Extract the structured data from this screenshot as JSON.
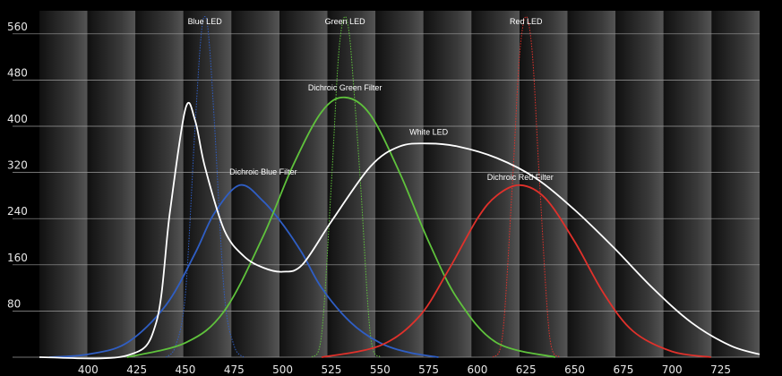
{
  "chart_data": {
    "type": "line",
    "xlabel": "",
    "ylabel": "",
    "xlim": [
      375,
      745
    ],
    "ylim": [
      0,
      600
    ],
    "grid": true,
    "x_ticks": [
      400,
      425,
      450,
      475,
      500,
      525,
      550,
      575,
      600,
      625,
      650,
      675,
      700,
      725
    ],
    "y_ticks": [
      80,
      160,
      240,
      320,
      400,
      480,
      560
    ],
    "colors": {
      "background": "#000000",
      "gridline": "#9a9a9a",
      "blue": "#2f5ec4",
      "green": "#5fc23c",
      "red": "#e0312b",
      "white": "#ffffff"
    },
    "series": [
      {
        "name": "Blue LED",
        "color": "#2f5ec4",
        "style": "dotted",
        "peak_x": 460,
        "peak_y": 590,
        "x": [
          440,
          445,
          450,
          455,
          458,
          460,
          462,
          465,
          470,
          475,
          480
        ],
        "y": [
          0,
          20,
          110,
          400,
          555,
          590,
          555,
          400,
          110,
          20,
          0
        ]
      },
      {
        "name": "Green LED",
        "color": "#5fc23c",
        "style": "dotted",
        "peak_x": 532,
        "peak_y": 590,
        "x": [
          515,
          520,
          525,
          528,
          530,
          532,
          534,
          536,
          540,
          545,
          550
        ],
        "y": [
          0,
          40,
          300,
          490,
          565,
          590,
          565,
          490,
          300,
          40,
          0
        ]
      },
      {
        "name": "Red LED",
        "color": "#e0312b",
        "style": "dotted",
        "peak_x": 625,
        "peak_y": 590,
        "x": [
          608,
          613,
          618,
          621,
          623,
          625,
          627,
          629,
          632,
          637,
          642
        ],
        "y": [
          0,
          40,
          300,
          490,
          565,
          590,
          565,
          490,
          300,
          40,
          0
        ]
      },
      {
        "name": "Dichroic Blue Filter",
        "color": "#2f5ec4",
        "style": "solid",
        "peak_x": 478,
        "peak_y": 298,
        "x": [
          380,
          400,
          420,
          440,
          455,
          465,
          478,
          490,
          500,
          510,
          520,
          535,
          550,
          565,
          580
        ],
        "y": [
          0,
          5,
          25,
          90,
          180,
          250,
          298,
          270,
          230,
          180,
          120,
          60,
          25,
          8,
          0
        ]
      },
      {
        "name": "Dichroic Green Filter",
        "color": "#5fc23c",
        "style": "solid",
        "peak_x": 532,
        "peak_y": 450,
        "x": [
          420,
          450,
          470,
          490,
          505,
          520,
          532,
          545,
          560,
          575,
          590,
          610,
          640
        ],
        "y": [
          0,
          25,
          80,
          210,
          330,
          425,
          450,
          420,
          320,
          200,
          100,
          25,
          0
        ]
      },
      {
        "name": "Dichroic Red Filter",
        "color": "#e0312b",
        "style": "solid",
        "peak_x": 622,
        "peak_y": 298,
        "x": [
          520,
          550,
          570,
          585,
          600,
          610,
          622,
          635,
          650,
          665,
          680,
          700,
          720
        ],
        "y": [
          0,
          20,
          70,
          150,
          240,
          280,
          298,
          275,
          200,
          110,
          45,
          10,
          0
        ]
      },
      {
        "name": "White LED",
        "color": "#ffffff",
        "style": "solid",
        "peak_x": 450,
        "peak_y": 430,
        "x": [
          375,
          420,
          435,
          442,
          450,
          455,
          460,
          470,
          480,
          490,
          500,
          510,
          525,
          545,
          560,
          575,
          590,
          610,
          630,
          650,
          670,
          690,
          710,
          730,
          745
        ],
        "y": [
          0,
          3,
          60,
          250,
          430,
          410,
          330,
          220,
          175,
          155,
          148,
          160,
          235,
          330,
          365,
          370,
          365,
          345,
          310,
          255,
          190,
          120,
          60,
          20,
          5
        ]
      }
    ]
  }
}
